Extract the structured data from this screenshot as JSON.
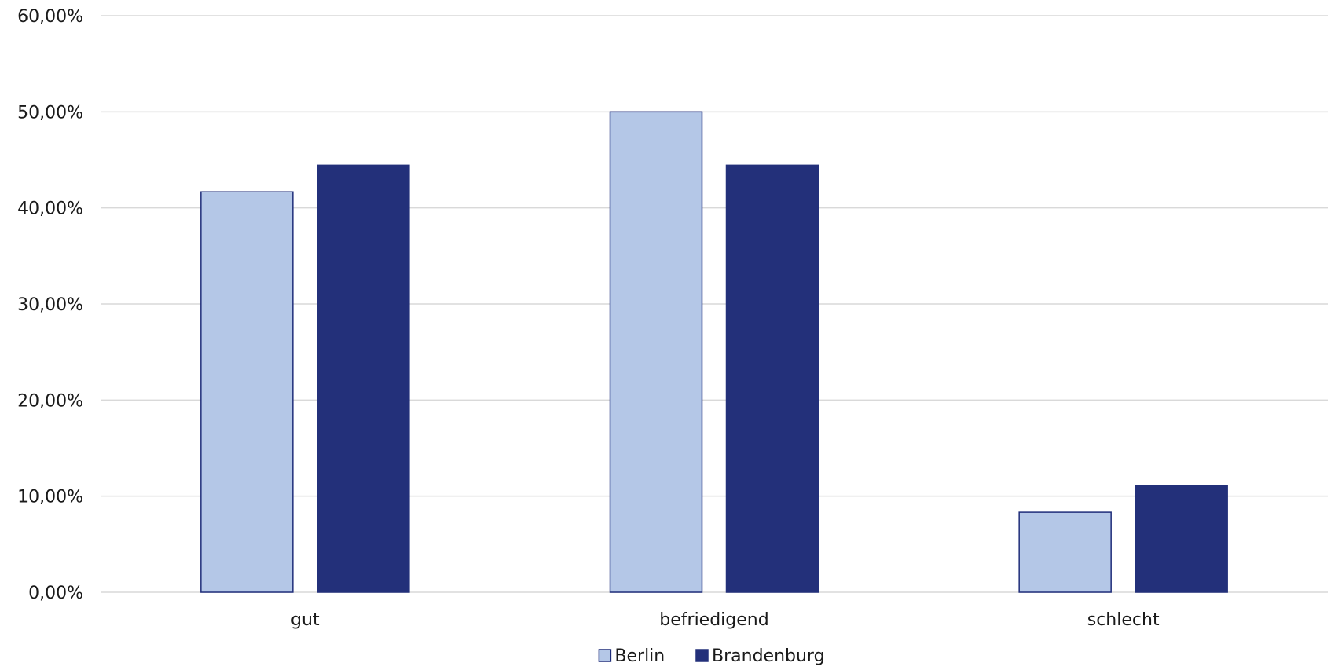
{
  "chart_data": {
    "type": "bar",
    "categories": [
      "gut",
      "befriedigend",
      "schlecht"
    ],
    "series": [
      {
        "name": "Berlin",
        "values": [
          41.67,
          50.0,
          8.33
        ],
        "color": "#b4c7e7",
        "stroke": "#1f2d7a"
      },
      {
        "name": "Brandenburg",
        "values": [
          44.44,
          44.44,
          11.11
        ],
        "color": "#23307a",
        "stroke": "#23307a"
      }
    ],
    "y_ticks": [
      "0,00%",
      "10,00%",
      "20,00%",
      "30,00%",
      "40,00%",
      "50,00%",
      "60,00%"
    ],
    "ylim": [
      0,
      60
    ],
    "grid": true,
    "legend_position": "bottom-center"
  }
}
